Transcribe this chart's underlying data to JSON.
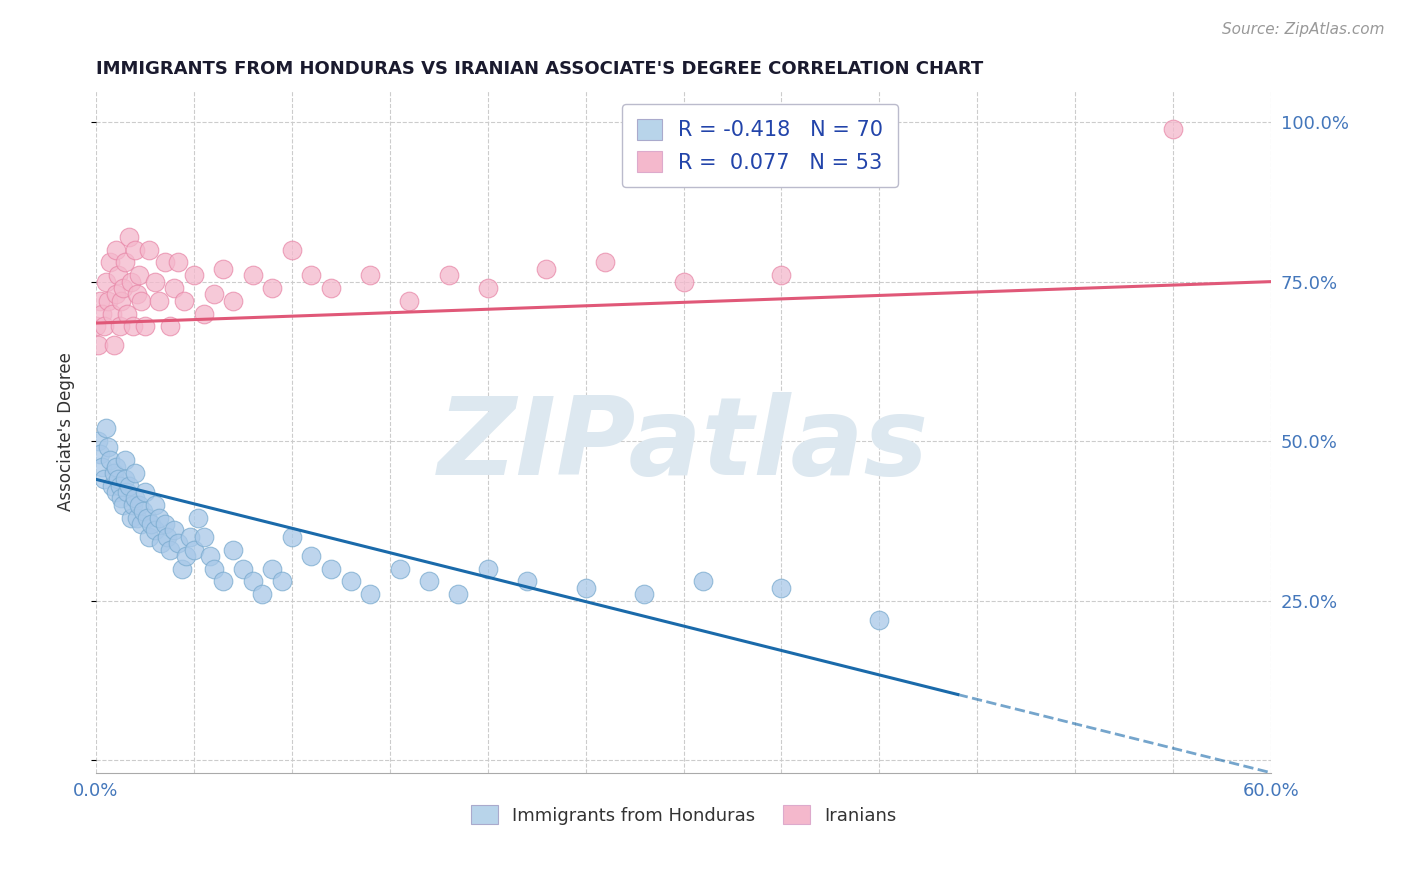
{
  "title": "IMMIGRANTS FROM HONDURAS VS IRANIAN ASSOCIATE'S DEGREE CORRELATION CHART",
  "source_text": "Source: ZipAtlas.com",
  "ylabel": "Associate's Degree",
  "legend_label1": "Immigrants from Honduras",
  "legend_label2": "Iranians",
  "series_blue": {
    "name": "Immigrants from Honduras",
    "color": "#a8c8e8",
    "edge_color": "#7aabcf",
    "line_color": "#1a6aaa",
    "line_color_dashed": "#7aaad0",
    "x": [
      0.001,
      0.002,
      0.003,
      0.004,
      0.005,
      0.006,
      0.007,
      0.008,
      0.009,
      0.01,
      0.01,
      0.011,
      0.012,
      0.013,
      0.014,
      0.015,
      0.015,
      0.016,
      0.017,
      0.018,
      0.019,
      0.02,
      0.02,
      0.021,
      0.022,
      0.023,
      0.024,
      0.025,
      0.026,
      0.027,
      0.028,
      0.03,
      0.03,
      0.032,
      0.033,
      0.035,
      0.036,
      0.038,
      0.04,
      0.042,
      0.044,
      0.046,
      0.048,
      0.05,
      0.052,
      0.055,
      0.058,
      0.06,
      0.065,
      0.07,
      0.075,
      0.08,
      0.085,
      0.09,
      0.095,
      0.1,
      0.11,
      0.12,
      0.13,
      0.14,
      0.155,
      0.17,
      0.185,
      0.2,
      0.22,
      0.25,
      0.28,
      0.31,
      0.35,
      0.4
    ],
    "y": [
      0.5,
      0.48,
      0.46,
      0.44,
      0.52,
      0.49,
      0.47,
      0.43,
      0.45,
      0.46,
      0.42,
      0.44,
      0.43,
      0.41,
      0.4,
      0.47,
      0.44,
      0.42,
      0.43,
      0.38,
      0.4,
      0.45,
      0.41,
      0.38,
      0.4,
      0.37,
      0.39,
      0.42,
      0.38,
      0.35,
      0.37,
      0.4,
      0.36,
      0.38,
      0.34,
      0.37,
      0.35,
      0.33,
      0.36,
      0.34,
      0.3,
      0.32,
      0.35,
      0.33,
      0.38,
      0.35,
      0.32,
      0.3,
      0.28,
      0.33,
      0.3,
      0.28,
      0.26,
      0.3,
      0.28,
      0.35,
      0.32,
      0.3,
      0.28,
      0.26,
      0.3,
      0.28,
      0.26,
      0.3,
      0.28,
      0.27,
      0.26,
      0.28,
      0.27,
      0.22
    ]
  },
  "series_pink": {
    "name": "Iranians",
    "color": "#f4b8cc",
    "edge_color": "#e888a8",
    "line_color": "#e05878",
    "x": [
      0.0,
      0.001,
      0.002,
      0.003,
      0.004,
      0.005,
      0.006,
      0.007,
      0.008,
      0.009,
      0.01,
      0.01,
      0.011,
      0.012,
      0.013,
      0.014,
      0.015,
      0.016,
      0.017,
      0.018,
      0.019,
      0.02,
      0.021,
      0.022,
      0.023,
      0.025,
      0.027,
      0.03,
      0.032,
      0.035,
      0.038,
      0.04,
      0.042,
      0.045,
      0.05,
      0.055,
      0.06,
      0.065,
      0.07,
      0.08,
      0.09,
      0.1,
      0.11,
      0.12,
      0.14,
      0.16,
      0.18,
      0.2,
      0.23,
      0.26,
      0.3,
      0.35,
      0.55
    ],
    "y": [
      0.68,
      0.65,
      0.72,
      0.7,
      0.68,
      0.75,
      0.72,
      0.78,
      0.7,
      0.65,
      0.8,
      0.73,
      0.76,
      0.68,
      0.72,
      0.74,
      0.78,
      0.7,
      0.82,
      0.75,
      0.68,
      0.8,
      0.73,
      0.76,
      0.72,
      0.68,
      0.8,
      0.75,
      0.72,
      0.78,
      0.68,
      0.74,
      0.78,
      0.72,
      0.76,
      0.7,
      0.73,
      0.77,
      0.72,
      0.76,
      0.74,
      0.8,
      0.76,
      0.74,
      0.76,
      0.72,
      0.76,
      0.74,
      0.77,
      0.78,
      0.75,
      0.76,
      0.99
    ]
  },
  "blue_line": {
    "x0": 0.0,
    "x1": 0.6,
    "y0": 0.44,
    "y1": -0.02,
    "dash_start": 0.44
  },
  "pink_line": {
    "x0": 0.0,
    "x1": 0.6,
    "y0": 0.685,
    "y1": 0.75
  },
  "xlim": [
    0.0,
    0.6
  ],
  "ylim": [
    -0.02,
    1.05
  ],
  "background_color": "#ffffff",
  "grid_color": "#cccccc",
  "title_color": "#1a1a2e",
  "title_fontsize": 13,
  "watermark_text": "ZIPatlas",
  "watermark_color": "#dde8f0"
}
